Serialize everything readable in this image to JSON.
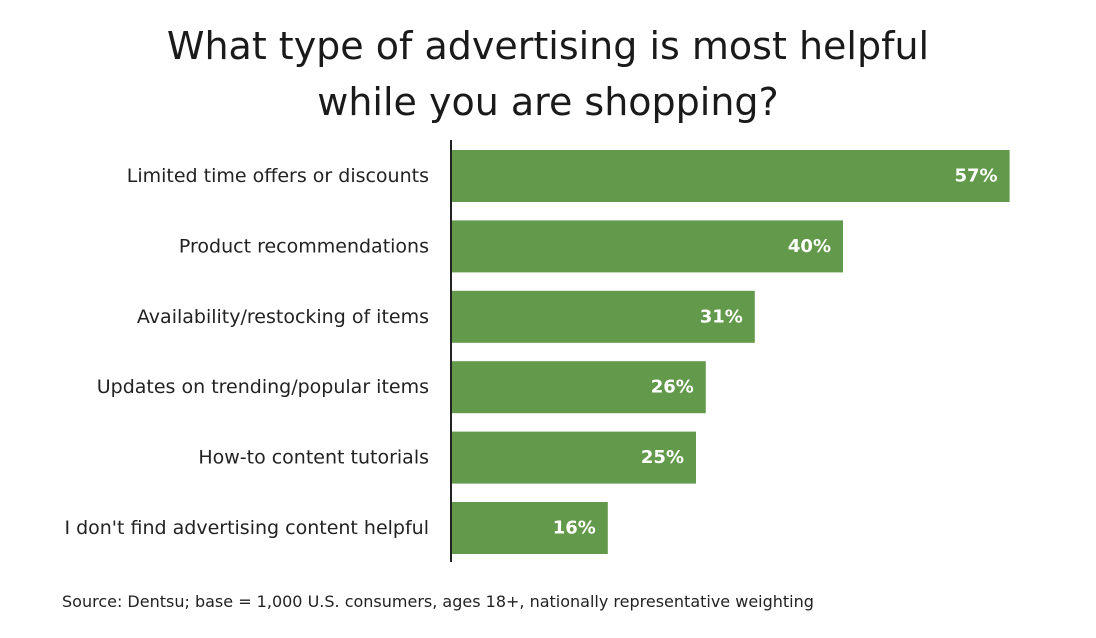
{
  "colors": {
    "bar": "#62994a",
    "axis": "#222222",
    "value_text": "#ffffff"
  },
  "chart_data": {
    "type": "bar",
    "orientation": "horizontal",
    "title": "What type of advertising is most helpful while you are shopping?",
    "title_lines": [
      "What type of advertising is most helpful",
      "while you are shopping?"
    ],
    "categories": [
      "Limited time offers or discounts",
      "Product recommendations",
      "Availability/restocking of items",
      "Updates on trending/popular items",
      "How-to content tutorials",
      "I don't find advertising content helpful"
    ],
    "values": [
      57,
      40,
      31,
      26,
      25,
      16
    ],
    "value_labels": [
      "57%",
      "40%",
      "31%",
      "26%",
      "25%",
      "16%"
    ],
    "unit": "%",
    "xlim": [
      0,
      60
    ],
    "grid": false,
    "legend": "none",
    "source": "Source: Dentsu; base = 1,000 U.S. consumers, ages 18+, nationally representative weighting"
  }
}
